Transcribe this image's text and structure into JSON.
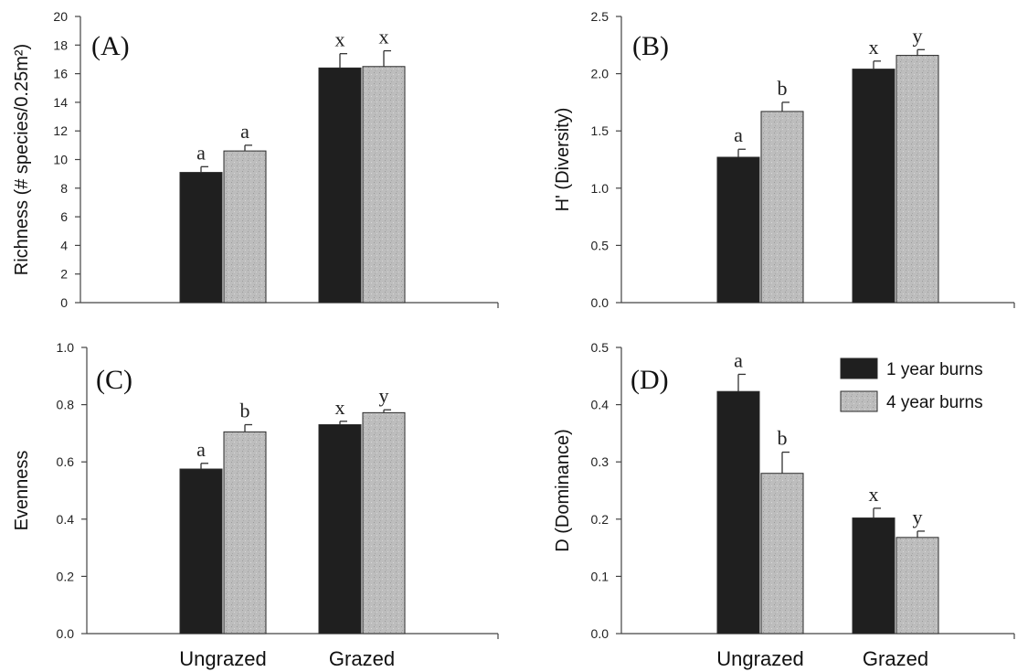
{
  "colors": {
    "series_1": "#1f1f1f",
    "series_2": "#bdbdbd",
    "axis": "#444444"
  },
  "legend": {
    "items": [
      "1 year burns",
      "4 year burns"
    ],
    "placement": "top-right of panel D"
  },
  "chart_data": [
    {
      "type": "bar",
      "panel": "(A)",
      "ylabel": "Richness (# species/0.25m²)",
      "ylim": [
        0,
        20
      ],
      "yticks": [
        "0",
        "2",
        "4",
        "6",
        "8",
        "10",
        "12",
        "14",
        "16",
        "18",
        "20"
      ],
      "categories": [
        "Ungrazed",
        "Grazed"
      ],
      "series": [
        {
          "name": "1 year burns",
          "values": [
            9.1,
            16.4
          ],
          "errors": [
            0.4,
            1.0
          ],
          "letters": [
            "a",
            "x"
          ]
        },
        {
          "name": "4 year burns",
          "values": [
            10.6,
            16.5
          ],
          "errors": [
            0.4,
            1.1
          ],
          "letters": [
            "a",
            "x"
          ]
        }
      ],
      "show_category_labels": false
    },
    {
      "type": "bar",
      "panel": "(B)",
      "ylabel": "H' (Diversity)",
      "ylim": [
        0,
        2.5
      ],
      "yticks": [
        "0.0",
        "0.5",
        "1.0",
        "1.5",
        "2.0",
        "2.5"
      ],
      "categories": [
        "Ungrazed",
        "Grazed"
      ],
      "series": [
        {
          "name": "1 year burns",
          "values": [
            1.27,
            2.04
          ],
          "errors": [
            0.07,
            0.07
          ],
          "letters": [
            "a",
            "x"
          ]
        },
        {
          "name": "4 year burns",
          "values": [
            1.67,
            2.16
          ],
          "errors": [
            0.08,
            0.05
          ],
          "letters": [
            "b",
            "y"
          ]
        }
      ],
      "show_category_labels": false
    },
    {
      "type": "bar",
      "panel": "(C)",
      "ylabel": "Evenness",
      "ylim": [
        0,
        1.0
      ],
      "yticks": [
        "0.0",
        "0.2",
        "0.4",
        "0.6",
        "0.8",
        "1.0"
      ],
      "categories": [
        "Ungrazed",
        "Grazed"
      ],
      "series": [
        {
          "name": "1 year burns",
          "values": [
            0.575,
            0.73
          ],
          "errors": [
            0.02,
            0.012
          ],
          "letters": [
            "a",
            "x"
          ]
        },
        {
          "name": "4 year burns",
          "values": [
            0.705,
            0.772
          ],
          "errors": [
            0.025,
            0.01
          ],
          "letters": [
            "b",
            "y"
          ]
        }
      ],
      "show_category_labels": true
    },
    {
      "type": "bar",
      "panel": "(D)",
      "ylabel": "D (Dominance)",
      "ylim": [
        0,
        0.5
      ],
      "yticks": [
        "0.0",
        "0.1",
        "0.2",
        "0.3",
        "0.4",
        "0.5"
      ],
      "categories": [
        "Ungrazed",
        "Grazed"
      ],
      "series": [
        {
          "name": "1 year burns",
          "values": [
            0.423,
            0.202
          ],
          "errors": [
            0.03,
            0.017
          ],
          "letters": [
            "a",
            "x"
          ]
        },
        {
          "name": "4 year burns",
          "values": [
            0.28,
            0.168
          ],
          "errors": [
            0.037,
            0.011
          ],
          "letters": [
            "b",
            "y"
          ]
        }
      ],
      "show_category_labels": true
    }
  ]
}
